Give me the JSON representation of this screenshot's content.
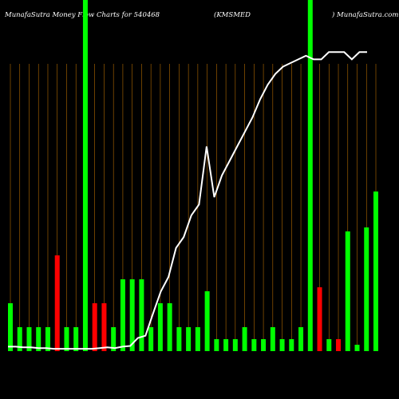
{
  "title": {
    "left": "MunafaSutra  Money Flow  Charts for 540468",
    "middle": "(KMSMED",
    "right": ") MunafaSutra.com"
  },
  "chart_data": {
    "type": "bar",
    "title": "MunafaSutra Money Flow Charts for 540468 (KMSMED) MunafaSutra.com",
    "bar_count": 40,
    "bars": [
      {
        "value": 60,
        "color": "green"
      },
      {
        "value": 30,
        "color": "green"
      },
      {
        "value": 30,
        "color": "green"
      },
      {
        "value": 30,
        "color": "green"
      },
      {
        "value": 30,
        "color": "green"
      },
      {
        "value": 120,
        "color": "red"
      },
      {
        "value": 30,
        "color": "green"
      },
      {
        "value": 30,
        "color": "green"
      },
      {
        "value": 440,
        "color": "green"
      },
      {
        "value": 60,
        "color": "red"
      },
      {
        "value": 60,
        "color": "red"
      },
      {
        "value": 30,
        "color": "green"
      },
      {
        "value": 90,
        "color": "green"
      },
      {
        "value": 90,
        "color": "green"
      },
      {
        "value": 90,
        "color": "green"
      },
      {
        "value": 30,
        "color": "green"
      },
      {
        "value": 60,
        "color": "green"
      },
      {
        "value": 60,
        "color": "green"
      },
      {
        "value": 30,
        "color": "green"
      },
      {
        "value": 30,
        "color": "green"
      },
      {
        "value": 30,
        "color": "green"
      },
      {
        "value": 75,
        "color": "green"
      },
      {
        "value": 15,
        "color": "green"
      },
      {
        "value": 15,
        "color": "green"
      },
      {
        "value": 15,
        "color": "green"
      },
      {
        "value": 30,
        "color": "green"
      },
      {
        "value": 15,
        "color": "green"
      },
      {
        "value": 15,
        "color": "green"
      },
      {
        "value": 30,
        "color": "green"
      },
      {
        "value": 15,
        "color": "green"
      },
      {
        "value": 15,
        "color": "green"
      },
      {
        "value": 30,
        "color": "green"
      },
      {
        "value": 440,
        "color": "green"
      },
      {
        "value": 80,
        "color": "red"
      },
      {
        "value": 15,
        "color": "green"
      },
      {
        "value": 15,
        "color": "red"
      },
      {
        "value": 150,
        "color": "green"
      },
      {
        "value": 8,
        "color": "green"
      },
      {
        "value": 155,
        "color": "green"
      },
      {
        "value": 200,
        "color": "green"
      }
    ],
    "line": [
      4,
      4,
      3,
      3,
      2,
      2,
      1,
      1,
      1,
      1,
      1,
      1,
      2,
      3,
      2,
      4,
      5,
      16,
      19,
      50,
      80,
      100,
      140,
      155,
      185,
      200,
      280,
      210,
      240,
      260,
      280,
      300,
      320,
      345,
      365,
      380,
      390,
      395,
      400,
      405,
      400,
      400,
      410,
      410,
      410,
      400,
      410,
      410
    ],
    "ylim": [
      0,
      440
    ],
    "grid": "vertical",
    "colors": {
      "green": "#00ff00",
      "red": "#ff0000",
      "line": "#ffffff",
      "grid": "#b36b00",
      "background": "#000000"
    }
  }
}
